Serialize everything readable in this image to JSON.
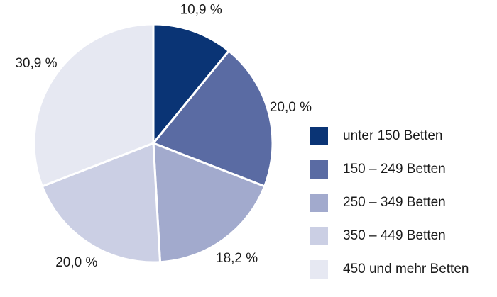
{
  "chart_data": {
    "type": "pie",
    "title": "",
    "categories": [
      "unter 150 Betten",
      "150 – 249 Betten",
      "250 – 349 Betten",
      "350 – 449 Betten",
      "450 und mehr Betten"
    ],
    "values": [
      10.9,
      20.0,
      18.2,
      20.0,
      30.9
    ],
    "value_labels": [
      "10,9 %",
      "20,0 %",
      "18,2 %",
      "20,0 %",
      "30,9 %"
    ],
    "colors": [
      "#0a3475",
      "#5a6ba3",
      "#a2aacd",
      "#cbcfe4",
      "#e6e8f2"
    ],
    "start_angle": "12 o'clock",
    "direction": "clockwise",
    "legend_position": "right"
  }
}
